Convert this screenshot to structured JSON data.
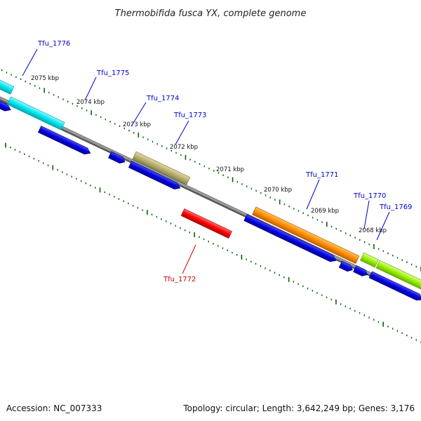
{
  "header": {
    "title": "Thermobifida fusca YX, complete genome"
  },
  "footer": {
    "accession": "Accession: NC_007333",
    "topology": "Topology: circular; Length: 3,642,249 bp; Genes: 3,176"
  },
  "colors": {
    "backbone": "#7a7a7a",
    "cds": "#0000dd",
    "tick": "#006600",
    "label_forward": "#0000cc",
    "label_reverse": "#cc0000"
  },
  "ruler": [
    {
      "label": "2075 kbp"
    },
    {
      "label": "2074 kbp"
    },
    {
      "label": "2073 kbp"
    },
    {
      "label": "2072 kbp"
    },
    {
      "label": "2071 kbp"
    },
    {
      "label": "2070 kbp"
    },
    {
      "label": "2069 kbp"
    },
    {
      "label": "2068 kbp"
    }
  ],
  "genes": [
    {
      "id": "Tfu_1776",
      "color": "#00e5ee",
      "strand": "forward"
    },
    {
      "id": "Tfu_1775",
      "color": "#00e5ee",
      "strand": "forward"
    },
    {
      "id": "Tfu_1774",
      "color": "#0000dd",
      "strand": "forward"
    },
    {
      "id": "Tfu_1773",
      "color": "#b8b070",
      "strand": "forward"
    },
    {
      "id": "Tfu_1772",
      "color": "#ff0000",
      "strand": "reverse"
    },
    {
      "id": "Tfu_1771",
      "color": "#ff8c00",
      "strand": "forward"
    },
    {
      "id": "Tfu_1770",
      "color": "#98f000",
      "strand": "forward"
    },
    {
      "id": "Tfu_1769",
      "color": "#98f000",
      "strand": "forward"
    }
  ]
}
